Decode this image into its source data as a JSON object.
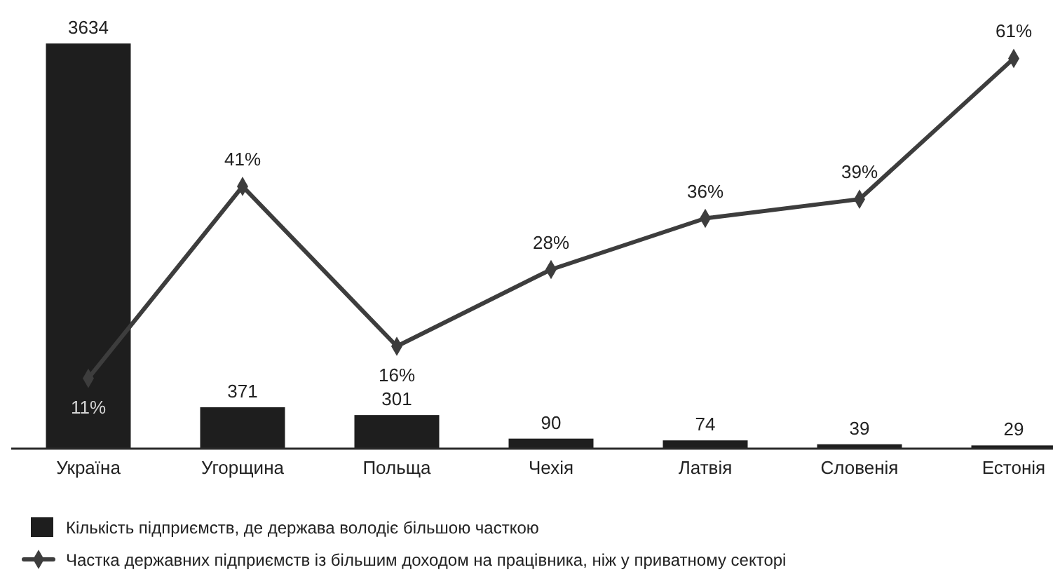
{
  "chart_data": {
    "type": "bar",
    "categories": [
      "Україна",
      "Угорщина",
      "Польща",
      "Чехія",
      "Латвія",
      "Словенія",
      "Естонія"
    ],
    "series": [
      {
        "name": "Кількість підприємств, де держава володіє більшою часткою",
        "color": "#1e1e1e",
        "values": [
          3634,
          371,
          301,
          90,
          74,
          39,
          29
        ]
      },
      {
        "name": "Частка державних підприємств із більшим доходом на працівника, ніж у приватному секторі",
        "type": "line",
        "axis": "y2",
        "color": "#3d3d3d",
        "marker": "diamond",
        "values": [
          11,
          41,
          16,
          28,
          36,
          39,
          61
        ],
        "value_labels": [
          "11%",
          "41%",
          "16%",
          "28%",
          "36%",
          "39%",
          "61%"
        ]
      }
    ],
    "data_labels": true,
    "tick_labels": "x",
    "legend": "bottom left"
  }
}
